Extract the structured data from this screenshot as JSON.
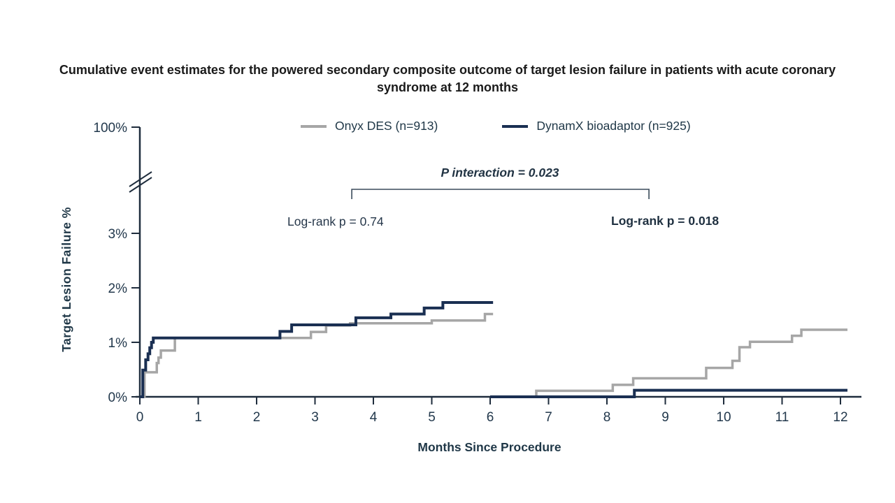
{
  "title": "Cumulative event estimates for the powered secondary composite outcome of target lesion failure in patients with acute coronary syndrome at 12 months",
  "legend": [
    {
      "label": "Onyx DES (n=913)",
      "color": "#a6a6a6"
    },
    {
      "label": "DynamX bioadaptor (n=925)",
      "color": "#1a2f52"
    }
  ],
  "annotations": {
    "p_interaction": "P interaction = 0.023",
    "logrank_left": "Log-rank p = 0.74",
    "logrank_right": "Log-rank p = 0.018"
  },
  "axes": {
    "y_title": "Target Lesion Failure %",
    "x_title": "Months Since Procedure"
  },
  "colors": {
    "onyx_gray": "#a6a6a6",
    "dynamx_navy": "#1a2f52",
    "axis": "#1f2d3d",
    "tick_text": "#22384c",
    "bracket": "#3a4a5a"
  },
  "chart_data": {
    "type": "line",
    "subtype": "kaplan-meier-step-landmark",
    "title": "Cumulative event estimates for the powered secondary composite outcome of target lesion failure in patients with acute coronary syndrome at 12 months",
    "xlabel": "Months Since Procedure",
    "ylabel": "Target Lesion Failure %",
    "xlim": [
      0,
      12.3
    ],
    "ylim_shown": [
      "0%",
      "1%",
      "2%",
      "3%",
      "axis-break",
      "100%"
    ],
    "x_ticks": [
      {
        "label": "0",
        "value": 0
      },
      {
        "label": "1",
        "value": 1
      },
      {
        "label": "2",
        "value": 2
      },
      {
        "label": "3",
        "value": 3
      },
      {
        "label": "4",
        "value": 4
      },
      {
        "label": "5",
        "value": 5
      },
      {
        "label": "6",
        "value": 6
      },
      {
        "label": "7",
        "value": 7
      },
      {
        "label": "8",
        "value": 8
      },
      {
        "label": "9",
        "value": 9
      },
      {
        "label": "10",
        "value": 10
      },
      {
        "label": "11",
        "value": 11
      },
      {
        "label": "12",
        "value": 12
      }
    ],
    "y_ticks": [
      {
        "label": "0%",
        "value": 0
      },
      {
        "label": "1%",
        "value": 1
      },
      {
        "label": "2%",
        "value": 2
      },
      {
        "label": "3%",
        "value": 3
      },
      {
        "label": "100%",
        "value": 100
      }
    ],
    "series": [
      {
        "name": "Onyx DES (n=913) 0-6 months",
        "color": "#a6a6a6",
        "width": 3.5,
        "points": [
          [
            0,
            0
          ],
          [
            0.08,
            0.45
          ],
          [
            0.29,
            0.62
          ],
          [
            0.32,
            0.72
          ],
          [
            0.36,
            0.85
          ],
          [
            0.6,
            1.08
          ],
          [
            2.93,
            1.19
          ],
          [
            3.19,
            1.31
          ],
          [
            3.6,
            1.35
          ],
          [
            5.0,
            1.4
          ],
          [
            5.91,
            1.52
          ]
        ],
        "end": 6.05
      },
      {
        "name": "DynamX bioadaptor (n=925) 0-6 months",
        "color": "#1a2f52",
        "width": 4,
        "points": [
          [
            0,
            0
          ],
          [
            0.05,
            0.49
          ],
          [
            0.1,
            0.68
          ],
          [
            0.14,
            0.79
          ],
          [
            0.17,
            0.9
          ],
          [
            0.2,
            1.0
          ],
          [
            0.23,
            1.08
          ],
          [
            2.4,
            1.2
          ],
          [
            2.6,
            1.32
          ],
          [
            3.7,
            1.45
          ],
          [
            4.3,
            1.52
          ],
          [
            4.87,
            1.63
          ],
          [
            5.19,
            1.73
          ]
        ],
        "end": 6.05
      },
      {
        "name": "Onyx DES (n=913) 6-12 months landmark",
        "color": "#a6a6a6",
        "width": 3.5,
        "points": [
          [
            6.0,
            0
          ],
          [
            6.79,
            0.11
          ],
          [
            8.1,
            0.22
          ],
          [
            8.45,
            0.34
          ],
          [
            9.7,
            0.53
          ],
          [
            10.15,
            0.66
          ],
          [
            10.27,
            0.91
          ],
          [
            10.45,
            1.01
          ],
          [
            11.17,
            1.12
          ],
          [
            11.33,
            1.23
          ]
        ],
        "end": 12.12
      },
      {
        "name": "DynamX bioadaptor (n=925) 6-12 months landmark",
        "color": "#1a2f52",
        "width": 4,
        "points": [
          [
            6.0,
            0
          ],
          [
            8.47,
            0.12
          ]
        ],
        "end": 12.12
      }
    ],
    "annotations": {
      "p_interaction": {
        "text": "P interaction = 0.023",
        "style": "bold italic"
      },
      "bracket": {
        "x1_month": 3.63,
        "x2_month": 8.72
      },
      "logrank_left": {
        "text": "Log-rank p = 0.74",
        "applies_to": "0-6 months"
      },
      "logrank_right": {
        "text": "Log-rank p = 0.018",
        "applies_to": "6-12 months"
      }
    },
    "legend_position": "top-center",
    "grid": false,
    "axis_break": {
      "axis": "y",
      "between": [
        "3%",
        "100%"
      ]
    }
  }
}
